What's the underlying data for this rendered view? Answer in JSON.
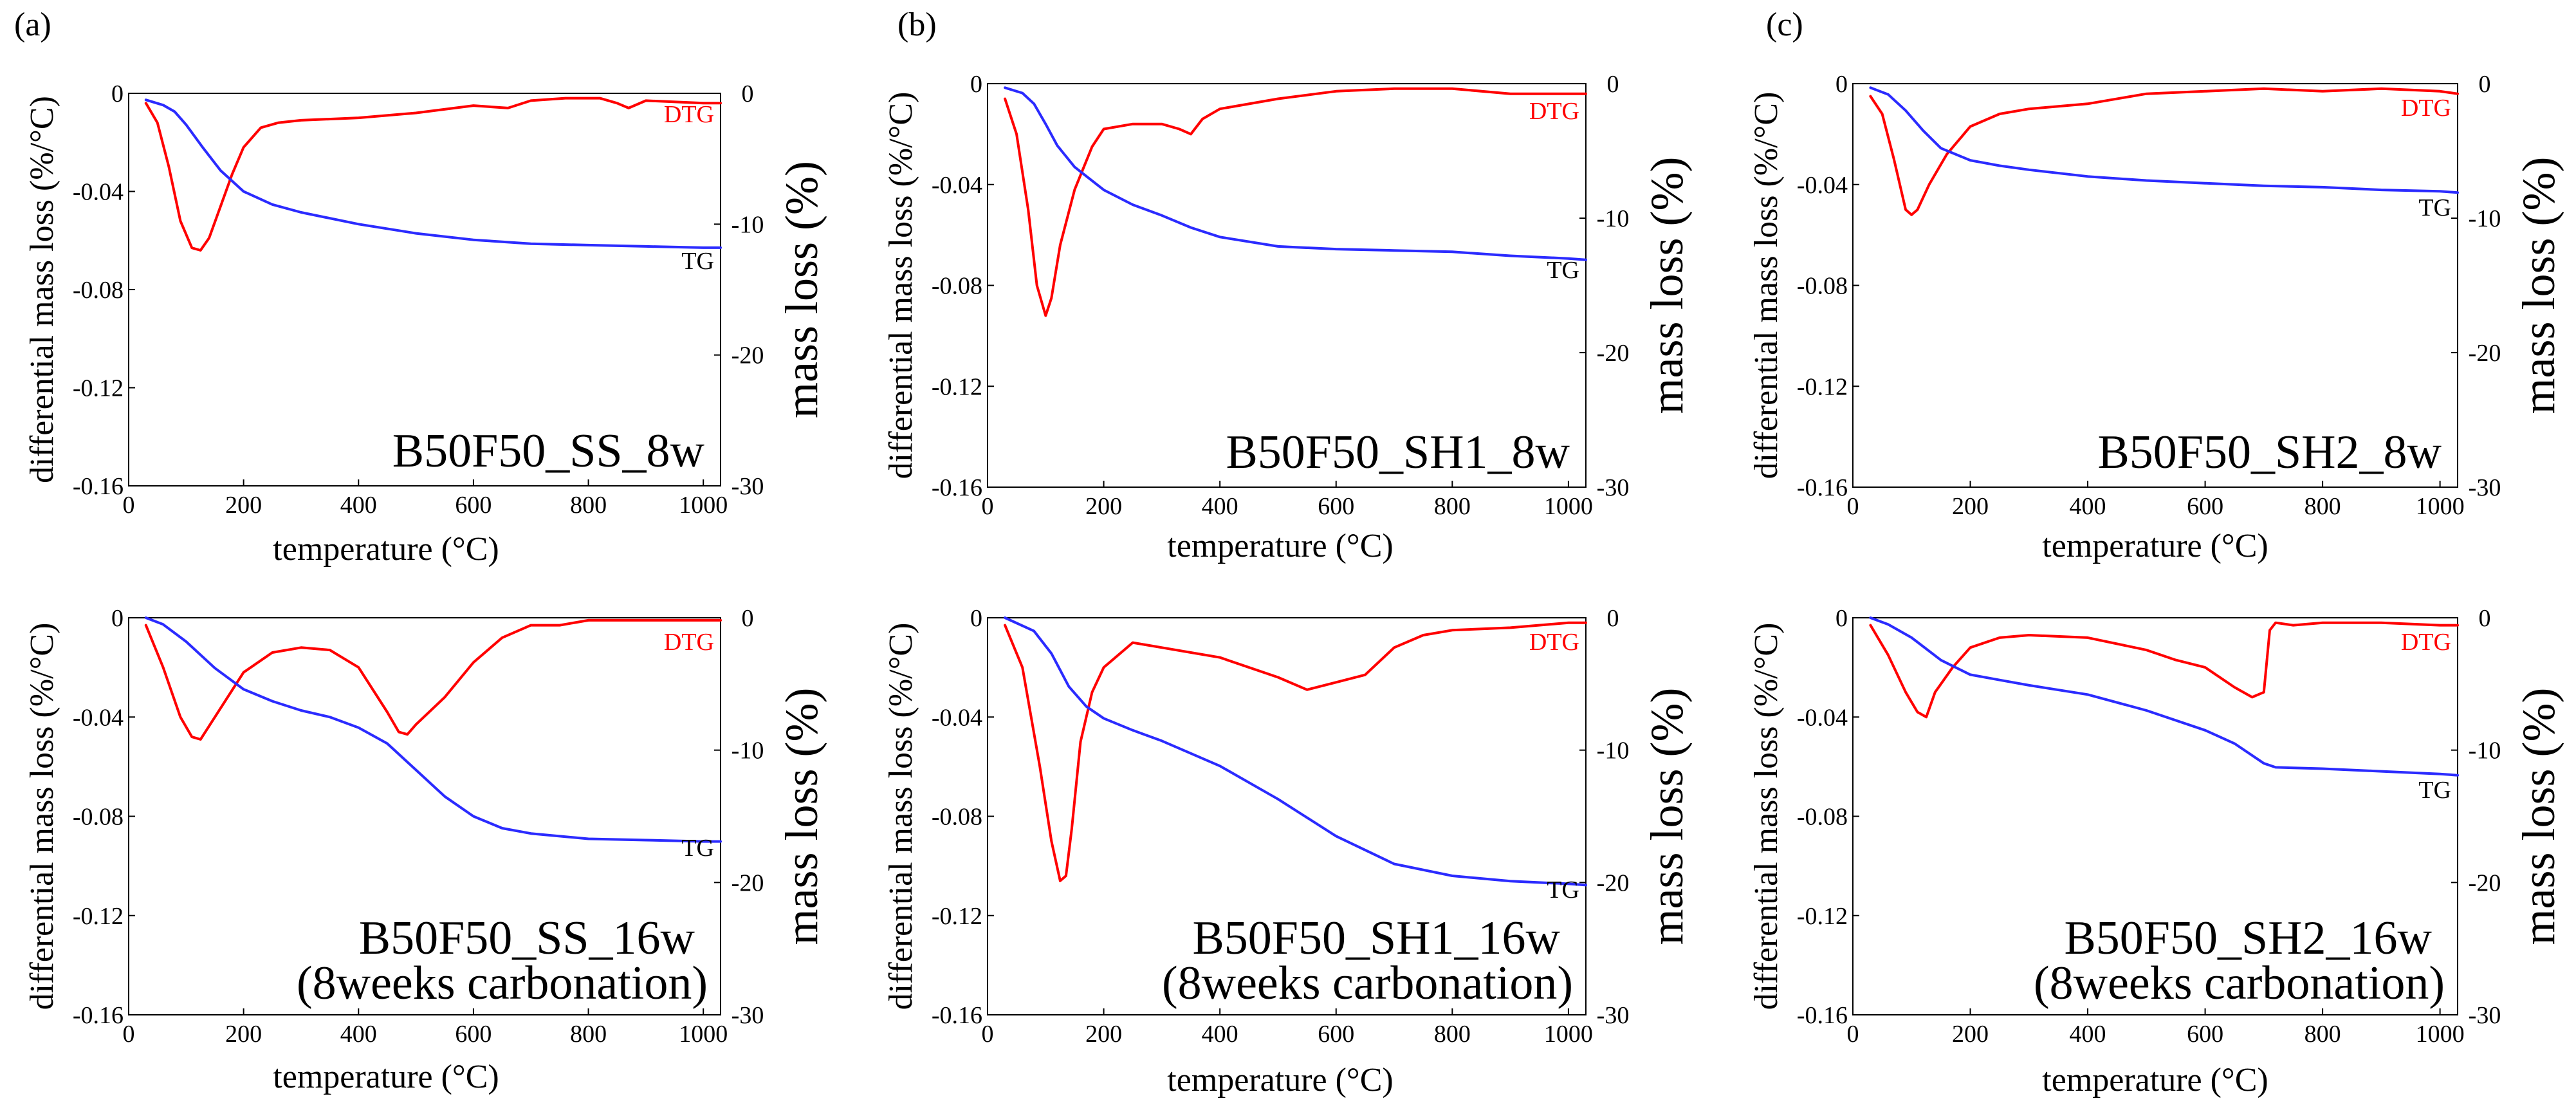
{
  "colors": {
    "dtg": "#ff0000",
    "tg": "#2b2bff",
    "axes": "#000000"
  },
  "chart_data": [
    {
      "type": "line",
      "panel_letter": "(a)",
      "title": "B50F50_SS_8w",
      "xlabel": "temperature (°C)",
      "ylabel": "differential mass loss (%/°C)",
      "y2label": "mass loss (%)",
      "xlim": [
        0,
        1030
      ],
      "ylim": [
        -0.16,
        0
      ],
      "y2lim": [
        -30,
        0
      ],
      "xticks": [
        "0",
        "200",
        "400",
        "600",
        "800",
        "1000"
      ],
      "yticks": [
        "0",
        "-0.04",
        "-0.08",
        "-0.12",
        "-0.16"
      ],
      "y2ticks": [
        "0",
        "-10",
        "-20",
        "-30"
      ],
      "series": [
        {
          "name": "DTG",
          "axis": "left",
          "x": [
            30,
            50,
            70,
            90,
            110,
            125,
            140,
            160,
            180,
            200,
            230,
            260,
            300,
            400,
            500,
            600,
            660,
            700,
            760,
            820,
            850,
            870,
            900,
            1000,
            1030
          ],
          "y": [
            -0.004,
            -0.012,
            -0.03,
            -0.052,
            -0.063,
            -0.064,
            -0.059,
            -0.046,
            -0.033,
            -0.022,
            -0.014,
            -0.012,
            -0.011,
            -0.01,
            -0.008,
            -0.005,
            -0.006,
            -0.003,
            -0.002,
            -0.002,
            -0.004,
            -0.006,
            -0.003,
            -0.004,
            -0.004
          ]
        },
        {
          "name": "TG",
          "axis": "right",
          "x": [
            30,
            60,
            80,
            100,
            130,
            160,
            200,
            250,
            300,
            400,
            500,
            600,
            700,
            800,
            900,
            1000,
            1030
          ],
          "y": [
            -0.5,
            -0.9,
            -1.4,
            -2.4,
            -4.2,
            -5.9,
            -7.5,
            -8.5,
            -9.1,
            -10.0,
            -10.7,
            -11.2,
            -11.5,
            -11.6,
            -11.7,
            -11.8,
            -11.8
          ]
        }
      ]
    },
    {
      "type": "line",
      "panel_letter": "(b)",
      "title": "B50F50_SH1_8w",
      "xlabel": "temperature (°C)",
      "ylabel": "differential mass loss (%/°C)",
      "y2label": "mass loss (%)",
      "xlim": [
        0,
        1030
      ],
      "ylim": [
        -0.16,
        0
      ],
      "y2lim": [
        -30,
        0
      ],
      "xticks": [
        "0",
        "200",
        "400",
        "600",
        "800",
        "1000"
      ],
      "yticks": [
        "0",
        "-0.04",
        "-0.08",
        "-0.12",
        "-0.16"
      ],
      "y2ticks": [
        "0",
        "-10",
        "-20",
        "-30"
      ],
      "series": [
        {
          "name": "DTG",
          "axis": "left",
          "x": [
            30,
            50,
            70,
            85,
            100,
            110,
            125,
            150,
            180,
            200,
            250,
            300,
            330,
            350,
            370,
            400,
            500,
            600,
            700,
            800,
            900,
            1000,
            1030
          ],
          "y": [
            -0.006,
            -0.02,
            -0.05,
            -0.08,
            -0.092,
            -0.085,
            -0.064,
            -0.042,
            -0.025,
            -0.018,
            -0.016,
            -0.016,
            -0.018,
            -0.02,
            -0.014,
            -0.01,
            -0.006,
            -0.003,
            -0.002,
            -0.002,
            -0.004,
            -0.004,
            -0.004
          ]
        },
        {
          "name": "TG",
          "axis": "right",
          "x": [
            30,
            60,
            80,
            100,
            120,
            150,
            200,
            250,
            300,
            350,
            400,
            500,
            600,
            700,
            800,
            900,
            1000,
            1030
          ],
          "y": [
            -0.3,
            -0.7,
            -1.5,
            -3.0,
            -4.6,
            -6.2,
            -7.9,
            -9.0,
            -9.8,
            -10.7,
            -11.4,
            -12.1,
            -12.3,
            -12.4,
            -12.5,
            -12.8,
            -13.0,
            -13.1
          ]
        }
      ]
    },
    {
      "type": "line",
      "panel_letter": "(c)",
      "title": "B50F50_SH2_8w",
      "xlabel": "temperature (°C)",
      "ylabel": "differential mass loss (%/°C)",
      "y2label": "mass loss (%)",
      "xlim": [
        0,
        1030
      ],
      "ylim": [
        -0.16,
        0
      ],
      "y2lim": [
        -30,
        0
      ],
      "xticks": [
        "0",
        "200",
        "400",
        "600",
        "800",
        "1000"
      ],
      "yticks": [
        "0",
        "-0.04",
        "-0.08",
        "-0.12",
        "-0.16"
      ],
      "y2ticks": [
        "0",
        "-10",
        "-20",
        "-30"
      ],
      "series": [
        {
          "name": "DTG",
          "axis": "left",
          "x": [
            30,
            50,
            70,
            90,
            100,
            110,
            130,
            160,
            200,
            250,
            300,
            400,
            500,
            600,
            700,
            800,
            900,
            1000,
            1030
          ],
          "y": [
            -0.005,
            -0.012,
            -0.03,
            -0.05,
            -0.052,
            -0.05,
            -0.04,
            -0.028,
            -0.017,
            -0.012,
            -0.01,
            -0.008,
            -0.004,
            -0.003,
            -0.002,
            -0.003,
            -0.002,
            -0.003,
            -0.004
          ]
        },
        {
          "name": "TG",
          "axis": "right",
          "x": [
            30,
            60,
            90,
            120,
            150,
            200,
            250,
            300,
            400,
            500,
            600,
            700,
            800,
            900,
            1000,
            1030
          ],
          "y": [
            -0.3,
            -0.8,
            -2.0,
            -3.5,
            -4.8,
            -5.7,
            -6.1,
            -6.4,
            -6.9,
            -7.2,
            -7.4,
            -7.6,
            -7.7,
            -7.9,
            -8.0,
            -8.1
          ]
        }
      ]
    },
    {
      "type": "line",
      "panel_letter": "",
      "title": "B50F50_SS_16w",
      "subtitle": "(8weeks carbonation)",
      "xlabel": "temperature (°C)",
      "ylabel": "differential mass loss (%/°C)",
      "y2label": "mass loss (%)",
      "xlim": [
        0,
        1030
      ],
      "ylim": [
        -0.16,
        0
      ],
      "y2lim": [
        -30,
        0
      ],
      "xticks": [
        "0",
        "200",
        "400",
        "600",
        "800",
        "1000"
      ],
      "yticks": [
        "0",
        "-0.04",
        "-0.08",
        "-0.12",
        "-0.16"
      ],
      "y2ticks": [
        "0",
        "-10",
        "-20",
        "-30"
      ],
      "series": [
        {
          "name": "DTG",
          "axis": "left",
          "x": [
            30,
            60,
            90,
            110,
            125,
            150,
            200,
            250,
            300,
            350,
            400,
            450,
            470,
            485,
            500,
            550,
            600,
            650,
            700,
            750,
            800,
            900,
            1000,
            1030
          ],
          "y": [
            -0.003,
            -0.02,
            -0.04,
            -0.048,
            -0.049,
            -0.04,
            -0.022,
            -0.014,
            -0.012,
            -0.013,
            -0.02,
            -0.038,
            -0.046,
            -0.047,
            -0.043,
            -0.032,
            -0.018,
            -0.008,
            -0.003,
            -0.003,
            -0.001,
            -0.001,
            -0.001,
            -0.001
          ]
        },
        {
          "name": "TG",
          "axis": "right",
          "x": [
            30,
            60,
            100,
            150,
            200,
            250,
            300,
            350,
            400,
            450,
            500,
            550,
            600,
            650,
            700,
            800,
            900,
            1000,
            1030
          ],
          "y": [
            0,
            -0.5,
            -1.8,
            -3.8,
            -5.4,
            -6.3,
            -7.0,
            -7.5,
            -8.3,
            -9.5,
            -11.5,
            -13.5,
            -15.0,
            -15.9,
            -16.3,
            -16.7,
            -16.8,
            -16.9,
            -16.9
          ]
        }
      ]
    },
    {
      "type": "line",
      "panel_letter": "",
      "title": "B50F50_SH1_16w",
      "subtitle": "(8weeks carbonation)",
      "xlabel": "temperature (°C)",
      "ylabel": "differential mass loss (%/°C)",
      "y2label": "mass loss (%)",
      "xlim": [
        0,
        1030
      ],
      "ylim": [
        -0.16,
        0
      ],
      "y2lim": [
        -30,
        0
      ],
      "xticks": [
        "0",
        "200",
        "400",
        "600",
        "800",
        "1000"
      ],
      "yticks": [
        "0",
        "-0.04",
        "-0.08",
        "-0.12",
        "-0.16"
      ],
      "y2ticks": [
        "0",
        "-10",
        "-20",
        "-30"
      ],
      "series": [
        {
          "name": "DTG",
          "axis": "left",
          "x": [
            30,
            60,
            90,
            110,
            125,
            135,
            145,
            160,
            180,
            200,
            230,
            250,
            300,
            400,
            500,
            550,
            600,
            650,
            700,
            750,
            800,
            900,
            1000,
            1030
          ],
          "y": [
            -0.003,
            -0.02,
            -0.06,
            -0.09,
            -0.106,
            -0.104,
            -0.085,
            -0.05,
            -0.03,
            -0.02,
            -0.014,
            -0.01,
            -0.012,
            -0.016,
            -0.024,
            -0.029,
            -0.026,
            -0.023,
            -0.012,
            -0.007,
            -0.005,
            -0.004,
            -0.002,
            -0.002
          ]
        },
        {
          "name": "TG",
          "axis": "right",
          "x": [
            30,
            80,
            110,
            140,
            170,
            200,
            250,
            300,
            400,
            500,
            600,
            700,
            800,
            900,
            1000,
            1030
          ],
          "y": [
            0,
            -1.0,
            -2.7,
            -5.2,
            -6.7,
            -7.6,
            -8.5,
            -9.3,
            -11.2,
            -13.7,
            -16.5,
            -18.6,
            -19.5,
            -19.9,
            -20.1,
            -20.2
          ]
        }
      ]
    },
    {
      "type": "line",
      "panel_letter": "",
      "title": "B50F50_SH2_16w",
      "subtitle": "(8weeks carbonation)",
      "xlabel": "temperature (°C)",
      "ylabel": "differential mass loss (%/°C)",
      "y2label": "mass loss (%)",
      "xlim": [
        0,
        1030
      ],
      "ylim": [
        -0.16,
        0
      ],
      "y2lim": [
        -30,
        0
      ],
      "xticks": [
        "0",
        "200",
        "400",
        "600",
        "800",
        "1000"
      ],
      "yticks": [
        "0",
        "-0.04",
        "-0.08",
        "-0.12",
        "-0.16"
      ],
      "y2ticks": [
        "0",
        "-10",
        "-20",
        "-30"
      ],
      "series": [
        {
          "name": "DTG",
          "axis": "left",
          "x": [
            30,
            60,
            90,
            110,
            125,
            140,
            170,
            200,
            250,
            300,
            400,
            500,
            550,
            600,
            650,
            680,
            700,
            710,
            720,
            750,
            800,
            900,
            1000,
            1030
          ],
          "y": [
            -0.003,
            -0.015,
            -0.03,
            -0.038,
            -0.04,
            -0.03,
            -0.02,
            -0.012,
            -0.008,
            -0.007,
            -0.008,
            -0.013,
            -0.017,
            -0.02,
            -0.028,
            -0.032,
            -0.03,
            -0.005,
            -0.002,
            -0.003,
            -0.002,
            -0.002,
            -0.003,
            -0.003
          ]
        },
        {
          "name": "TG",
          "axis": "right",
          "x": [
            30,
            60,
            100,
            150,
            200,
            250,
            300,
            400,
            500,
            600,
            650,
            700,
            720,
            800,
            900,
            1000,
            1030
          ],
          "y": [
            0,
            -0.5,
            -1.5,
            -3.2,
            -4.3,
            -4.7,
            -5.1,
            -5.8,
            -7.0,
            -8.5,
            -9.5,
            -11.0,
            -11.3,
            -11.4,
            -11.6,
            -11.8,
            -11.9
          ]
        }
      ]
    }
  ]
}
